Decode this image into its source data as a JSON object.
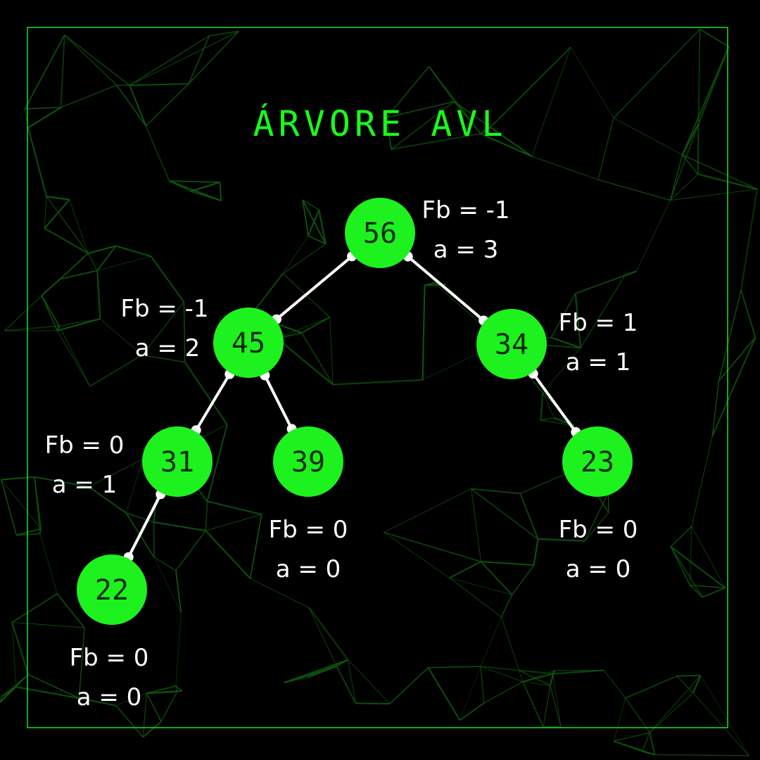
{
  "title": "ÁRVORE AVL",
  "colors": {
    "background": "#000000",
    "accent": "#19ff19",
    "node_fill": "#1ef21e",
    "node_text": "#062b06",
    "edge": "#ffffff",
    "frame": "#22dd22",
    "mesh": "#0f5a0f"
  },
  "nodes": [
    {
      "id": "n56",
      "value": "56",
      "fb": "Fb = -1",
      "height": "a = 3"
    },
    {
      "id": "n45",
      "value": "45",
      "fb": "Fb = -1",
      "height": "a = 2"
    },
    {
      "id": "n34",
      "value": "34",
      "fb": "Fb = 1",
      "height": "a = 1"
    },
    {
      "id": "n31",
      "value": "31",
      "fb": "Fb = 0",
      "height": "a = 1"
    },
    {
      "id": "n39",
      "value": "39",
      "fb": "Fb = 0",
      "height": "a = 0"
    },
    {
      "id": "n23",
      "value": "23",
      "fb": "Fb = 0",
      "height": "a = 0"
    },
    {
      "id": "n22",
      "value": "22",
      "fb": "Fb = 0",
      "height": "a = 0"
    }
  ],
  "edges": [
    {
      "from": "n56",
      "to": "n45"
    },
    {
      "from": "n56",
      "to": "n34"
    },
    {
      "from": "n45",
      "to": "n31"
    },
    {
      "from": "n45",
      "to": "n39"
    },
    {
      "from": "n34",
      "to": "n23"
    },
    {
      "from": "n31",
      "to": "n22"
    }
  ]
}
